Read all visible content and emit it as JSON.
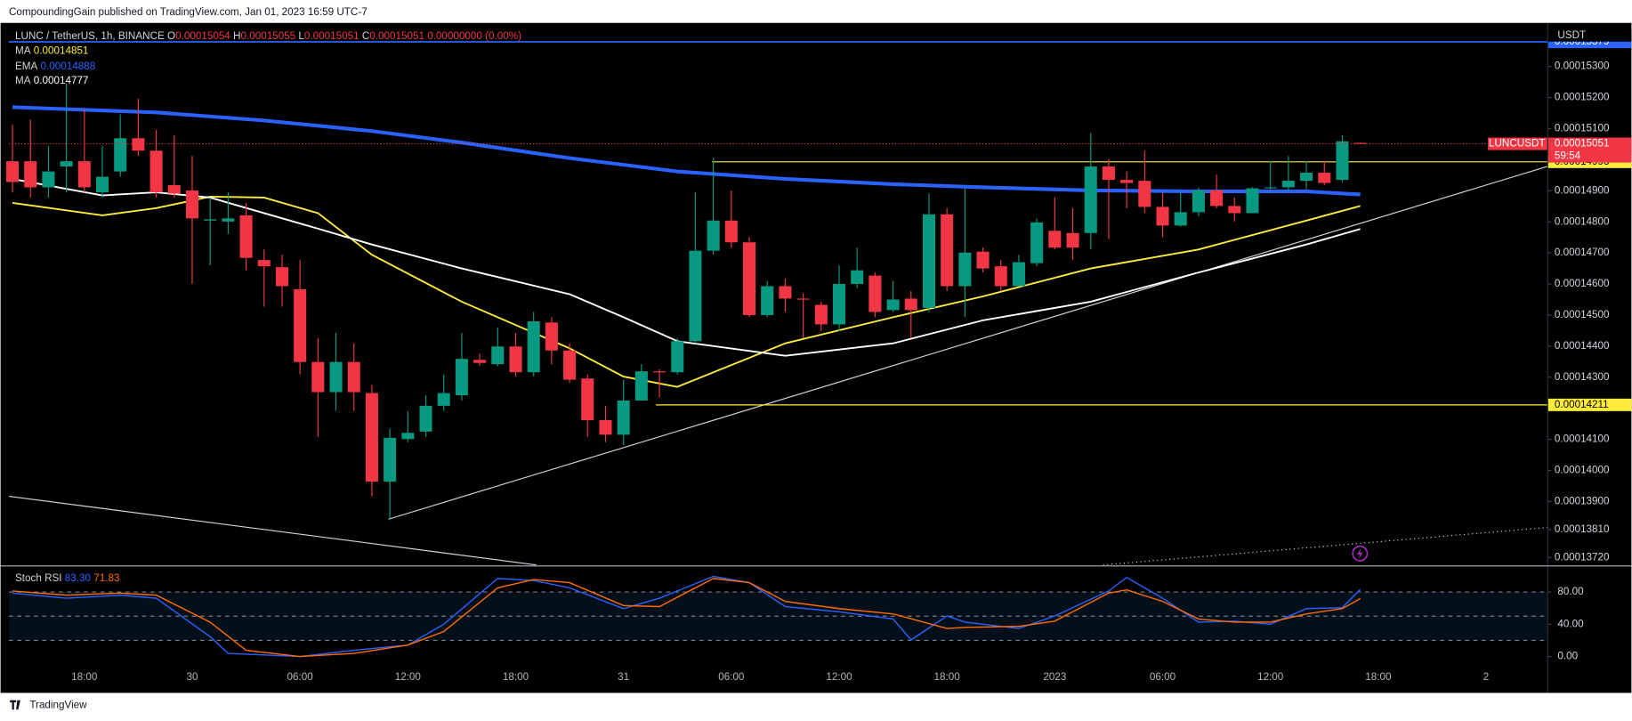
{
  "top_bar": "CompoundingGain published on TradingView.com, Jan 01, 2023 16:59 UTC-7",
  "footer": "TradingView",
  "chart_data": [
    {
      "type": "candlestick",
      "symbol": "LUNC / TetherUS, 1h, BINANCE",
      "ohlc_prefixes": [
        "O",
        "H",
        "L",
        "C"
      ],
      "change": "0.00000000 (0.00%)",
      "up_color": "#089981",
      "down_color": "#f23645",
      "currency": "USDT",
      "symbol_tag": "LUNCUSDT",
      "countdown": "59:54",
      "candles": [
        [
          0.00014995,
          0.00015112,
          0.00014895,
          0.00014928
        ],
        [
          0.00014995,
          0.00015129,
          0.00014878,
          0.00014911
        ],
        [
          0.00014911,
          0.00015045,
          0.00014878,
          0.00014962
        ],
        [
          0.00014978,
          0.00015246,
          0.00014895,
          0.00014995
        ],
        [
          0.00014995,
          0.00015163,
          0.00014895,
          0.00014911
        ],
        [
          0.00014895,
          0.00015045,
          0.00014878,
          0.00014945
        ],
        [
          0.00014962,
          0.00015146,
          0.00014945,
          0.00015069
        ],
        [
          0.00015069,
          0.00015196,
          0.00015012,
          0.00015029
        ],
        [
          0.00015029,
          0.00015096,
          0.00014878,
          0.00014895
        ],
        [
          0.00014918,
          0.00015079,
          0.00014878,
          0.00014891
        ],
        [
          0.00014901,
          0.00015012,
          0.000146,
          0.00014811
        ],
        [
          0.00014804,
          0.00014878,
          0.0001466,
          0.00014808
        ],
        [
          0.00014801,
          0.00014895,
          0.00014761,
          0.00014811
        ],
        [
          0.00014821,
          0.00014861,
          0.00014644,
          0.00014684
        ],
        [
          0.00014677,
          0.00014711,
          0.00014527,
          0.00014657
        ],
        [
          0.00014654,
          0.00014694,
          0.00014527,
          0.00014593
        ],
        [
          0.00014583,
          0.00014677,
          0.00014309,
          0.00014349
        ],
        [
          0.00014349,
          0.00014426,
          0.00014108,
          0.00014252
        ],
        [
          0.00014252,
          0.00014443,
          0.00014192,
          0.00014349
        ],
        [
          0.00014349,
          0.00014409,
          0.00014192,
          0.00014252
        ],
        [
          0.00014249,
          0.00014275,
          0.00013917,
          0.00013964
        ],
        [
          0.00013964,
          0.00014135,
          0.0001384,
          0.00014105
        ],
        [
          0.00014101,
          0.00014192,
          0.00014091,
          0.00014121
        ],
        [
          0.00014125,
          0.00014242,
          0.00014108,
          0.00014208
        ],
        [
          0.00014208,
          0.00014309,
          0.00014192,
          0.00014249
        ],
        [
          0.00014242,
          0.00014443,
          0.00014225,
          0.00014359
        ],
        [
          0.00014356,
          0.00014376,
          0.00014336,
          0.00014346
        ],
        [
          0.00014342,
          0.0001446,
          0.00014336,
          0.00014399
        ],
        [
          0.00014399,
          0.00014443,
          0.00014302,
          0.00014316
        ],
        [
          0.00014316,
          0.0001451,
          0.00014302,
          0.0001448
        ],
        [
          0.00014476,
          0.00014493,
          0.00014342,
          0.00014386
        ],
        [
          0.00014386,
          0.00014409,
          0.00014282,
          0.00014292
        ],
        [
          0.00014296,
          0.00014309,
          0.00014108,
          0.00014162
        ],
        [
          0.00014162,
          0.00014208,
          0.00014091,
          0.00014115
        ],
        [
          0.00014115,
          0.00014292,
          0.00014081,
          0.00014225
        ],
        [
          0.00014225,
          0.00014342,
          0.00014225,
          0.00014319
        ],
        [
          0.00014319,
          0.00014326,
          0.00014235,
          0.00014316
        ],
        [
          0.00014316,
          0.00014426,
          0.00014309,
          0.00014416
        ],
        [
          0.00014416,
          0.00014895,
          0.00014409,
          0.00014707
        ],
        [
          0.00014707,
          0.00015005,
          0.00014694,
          0.00014804
        ],
        [
          0.00014804,
          0.00014901,
          0.00014717,
          0.00014734
        ],
        [
          0.00014734,
          0.00014751,
          0.00014493,
          0.000145
        ],
        [
          0.000145,
          0.0001461,
          0.00014493,
          0.00014593
        ],
        [
          0.00014593,
          0.00014617,
          0.0001451,
          0.00014553
        ],
        [
          0.00014553,
          0.0001457,
          0.00014426,
          0.0001455
        ],
        [
          0.00014533,
          0.00014543,
          0.00014449,
          0.0001447
        ],
        [
          0.0001447,
          0.0001466,
          0.00014449,
          0.000146
        ],
        [
          0.000146,
          0.00014717,
          0.00014587,
          0.00014644
        ],
        [
          0.00014627,
          0.00014637,
          0.00014493,
          0.0001451
        ],
        [
          0.00014516,
          0.0001461,
          0.0001451,
          0.0001455
        ],
        [
          0.00014553,
          0.00014577,
          0.00014426,
          0.00014516
        ],
        [
          0.00014523,
          0.00014891,
          0.0001451,
          0.00014824
        ],
        [
          0.00014824,
          0.00014844,
          0.00014577,
          0.00014593
        ],
        [
          0.00014593,
          0.00014911,
          0.00014493,
          0.00014701
        ],
        [
          0.00014704,
          0.00014717,
          0.00014637,
          0.0001465
        ],
        [
          0.00014657,
          0.00014677,
          0.00014577,
          0.00014593
        ],
        [
          0.00014593,
          0.00014694,
          0.00014593,
          0.0001467
        ],
        [
          0.00014667,
          0.00014811,
          0.00014657,
          0.00014798
        ],
        [
          0.00014771,
          0.00014878,
          0.00014711,
          0.00014717
        ],
        [
          0.00014764,
          0.00014844,
          0.00014677,
          0.00014717
        ],
        [
          0.00014764,
          0.00015086,
          0.00014711,
          0.00014978
        ],
        [
          0.00014978,
          0.00015002,
          0.00014744,
          0.00014935
        ],
        [
          0.00014935,
          0.00014962,
          0.00014844,
          0.00014925
        ],
        [
          0.00014932,
          0.00015029,
          0.00014828,
          0.00014848
        ],
        [
          0.00014848,
          0.00014895,
          0.00014751,
          0.00014788
        ],
        [
          0.00014788,
          0.00014895,
          0.00014784,
          0.00014831
        ],
        [
          0.00014831,
          0.00014911,
          0.00014818,
          0.00014901
        ],
        [
          0.00014901,
          0.00014952,
          0.00014844,
          0.00014851
        ],
        [
          0.00014851,
          0.00014878,
          0.00014801,
          0.00014828
        ],
        [
          0.00014828,
          0.00014911,
          0.00014828,
          0.00014908
        ],
        [
          0.00014908,
          0.00014995,
          0.00014905,
          0.00014911
        ],
        [
          0.00014911,
          0.00015012,
          0.00014901,
          0.00014932
        ],
        [
          0.00014932,
          0.00014995,
          0.00014905,
          0.00014958
        ],
        [
          0.00014958,
          0.00014995,
          0.00014918,
          0.00014925
        ],
        [
          0.00014935,
          0.00015079,
          0.00014928,
          0.00015059
        ],
        [
          0.00015054,
          0.00015055,
          0.00015051,
          0.00015051
        ]
      ],
      "indicators": [
        {
          "name": "MA",
          "color": "#ffeb3b",
          "x": [
            0,
            5,
            8,
            11,
            14,
            17,
            20,
            25,
            31,
            34,
            37,
            43,
            49,
            54,
            60,
            66,
            72,
            75
          ],
          "values": [
            0.00014861,
            0.00014821,
            0.00014844,
            0.00014881,
            0.00014878,
            0.00014828,
            0.00014694,
            0.00014543,
            0.00014393,
            0.00014302,
            0.00014269,
            0.00014409,
            0.00014493,
            0.0001456,
            0.0001465,
            0.00014711,
            0.00014804,
            0.00014851
          ]
        },
        {
          "name": "EMA",
          "color": "#2962ff",
          "x": [
            0,
            8,
            14,
            20,
            25,
            31,
            37,
            43,
            49,
            54,
            60,
            66,
            72,
            75
          ],
          "values": [
            0.00015169,
            0.00015152,
            0.00015126,
            0.00015092,
            0.00015055,
            0.00015005,
            0.00014962,
            0.00014938,
            0.00014921,
            0.00014911,
            0.00014901,
            0.00014898,
            0.00014898,
            0.00014888
          ]
        },
        {
          "name": "MA",
          "color": "#ffffff",
          "x": [
            0,
            5,
            8,
            11,
            14,
            17,
            20,
            25,
            31,
            34,
            37,
            43,
            49,
            54,
            60,
            66,
            72,
            75
          ],
          "values": [
            0.00014938,
            0.00014885,
            0.00014895,
            0.00014878,
            0.00014828,
            0.00014778,
            0.00014727,
            0.0001465,
            0.00014567,
            0.00014493,
            0.00014416,
            0.00014369,
            0.00014409,
            0.00014483,
            0.00014543,
            0.00014637,
            0.00014727,
            0.00014777
          ]
        }
      ],
      "levels": [
        {
          "value": 0.00015379,
          "color": "#2962ff"
        },
        {
          "value": 0.00014993,
          "color": "#ffeb3b"
        },
        {
          "value": 0.00014211,
          "color": "#ffeb3b"
        }
      ],
      "ylim": [
        0.00013696,
        0.0001542
      ],
      "yticks": [
        {
          "value": 0.000153,
          "label": "0.00015300"
        },
        {
          "value": 0.000152,
          "label": "0.00015200"
        },
        {
          "value": 0.000151,
          "label": "0.00015100"
        },
        {
          "value": 0.000149,
          "label": "0.00014900"
        },
        {
          "value": 0.000148,
          "label": "0.00014800"
        },
        {
          "value": 0.000147,
          "label": "0.00014700"
        },
        {
          "value": 0.000146,
          "label": "0.00014600"
        },
        {
          "value": 0.000145,
          "label": "0.00014500"
        },
        {
          "value": 0.000144,
          "label": "0.00014400"
        },
        {
          "value": 0.000143,
          "label": "0.00014300"
        },
        {
          "value": 0.000141,
          "label": "0.00014100"
        },
        {
          "value": 0.00014,
          "label": "0.00014000"
        },
        {
          "value": 0.000139,
          "label": "0.00013900"
        },
        {
          "value": 0.0001381,
          "label": "0.00013810"
        },
        {
          "value": 0.0001372,
          "label": "0.00013720"
        }
      ],
      "xlim": [
        -0.2,
        85.4
      ],
      "xticks": [
        {
          "value": 4,
          "label": "18:00"
        },
        {
          "value": 10,
          "label": "30"
        },
        {
          "value": 16,
          "label": "06:00"
        },
        {
          "value": 22,
          "label": "12:00"
        },
        {
          "value": 28,
          "label": "18:00"
        },
        {
          "value": 34,
          "label": "31"
        },
        {
          "value": 40,
          "label": "06:00"
        },
        {
          "value": 46,
          "label": "12:00"
        },
        {
          "value": 52,
          "label": "18:00"
        },
        {
          "value": 58,
          "label": "2023"
        },
        {
          "value": 64,
          "label": "06:00"
        },
        {
          "value": 70,
          "label": "12:00"
        },
        {
          "value": 76,
          "label": "18:00"
        },
        {
          "value": 82,
          "label": "2"
        }
      ]
    },
    {
      "type": "line",
      "title": "Stoch RSI",
      "series": [
        {
          "color": "#2962ff",
          "value_label": "83.30",
          "x": [
            0,
            3,
            6,
            8,
            11,
            12,
            16,
            19,
            22,
            24,
            27,
            29,
            31,
            34,
            36,
            39,
            41,
            43,
            46,
            49,
            50,
            52,
            53,
            56,
            58,
            61,
            62,
            64,
            66,
            68,
            70,
            72,
            74,
            75
          ],
          "values": [
            78.7,
            72.3,
            76.1,
            72.3,
            24.5,
            3.9,
            0,
            7.7,
            14.2,
            40,
            96.8,
            94.2,
            85.2,
            59.4,
            72.3,
            99.4,
            91.6,
            61.9,
            55.5,
            46.5,
            20.6,
            50.3,
            42.6,
            34.8,
            50.3,
            81.3,
            98.1,
            72.3,
            42.6,
            43.9,
            40,
            59.4,
            60.6,
            83.3
          ]
        },
        {
          "color": "#ff6d00",
          "value_label": "71.83",
          "x": [
            0,
            3,
            6,
            8,
            11,
            13,
            16,
            19,
            22,
            24,
            27,
            29,
            31,
            34,
            36,
            39,
            41,
            43,
            46,
            49,
            52,
            53,
            56,
            58,
            61,
            62,
            64,
            66,
            68,
            70,
            72,
            74,
            75
          ],
          "values": [
            81.3,
            76.1,
            78.7,
            76.1,
            42.6,
            7.7,
            0,
            3.9,
            14.2,
            31,
            85.2,
            95.5,
            91.6,
            63.2,
            61.9,
            96.8,
            91.6,
            68.4,
            59.4,
            52.9,
            34.8,
            36.1,
            37.4,
            43.9,
            78.7,
            82.6,
            68.4,
            46.5,
            42.6,
            42.6,
            52.9,
            59.4,
            71.83
          ]
        }
      ],
      "bands": [
        80,
        50,
        20
      ],
      "ylim": [
        -11.6,
        111
      ],
      "yticks": [
        {
          "value": 80,
          "label": "80.00"
        },
        {
          "value": 40,
          "label": "40.00"
        },
        {
          "value": 0,
          "label": "0.00"
        }
      ]
    }
  ]
}
